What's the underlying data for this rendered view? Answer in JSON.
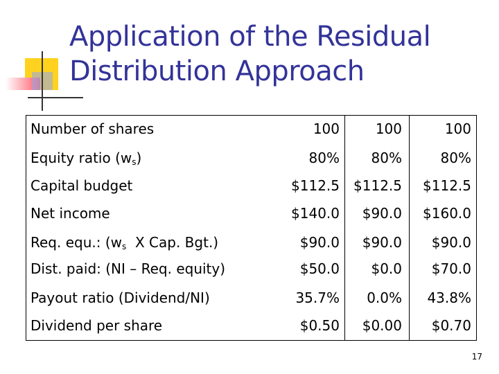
{
  "title": [
    "Application of the Residual",
    "Distribution Approach"
  ],
  "table": {
    "rows": [
      {
        "label": "Number of shares",
        "values": [
          "100",
          "100",
          "100"
        ]
      },
      {
        "label": "Equity ratio (w",
        "label_sub": "s",
        "label_end": ")",
        "values": [
          "80%",
          "80%",
          "80%"
        ]
      },
      {
        "label": "Capital budget",
        "values": [
          "$112.5",
          "$112.5",
          "$112.5"
        ]
      },
      {
        "label": "Net income",
        "values": [
          "$140.0",
          "$90.0",
          "$160.0"
        ]
      },
      {
        "label": "Req. equ.: (w",
        "label_sub": "s",
        "label_end": "  X Cap. Bgt.)",
        "values": [
          "$90.0",
          "$90.0",
          "$90.0"
        ]
      },
      {
        "label": "Dist. paid: (NI – Req. equity)",
        "values": [
          "$50.0",
          "$0.0",
          "$70.0"
        ]
      },
      {
        "label": "Payout ratio (Dividend/NI)",
        "values": [
          "35.7%",
          "0.0%",
          "43.8%"
        ]
      },
      {
        "label": "Dividend per share",
        "values": [
          "$0.50",
          "$0.00",
          "$0.70"
        ]
      }
    ]
  },
  "page_number": "17"
}
